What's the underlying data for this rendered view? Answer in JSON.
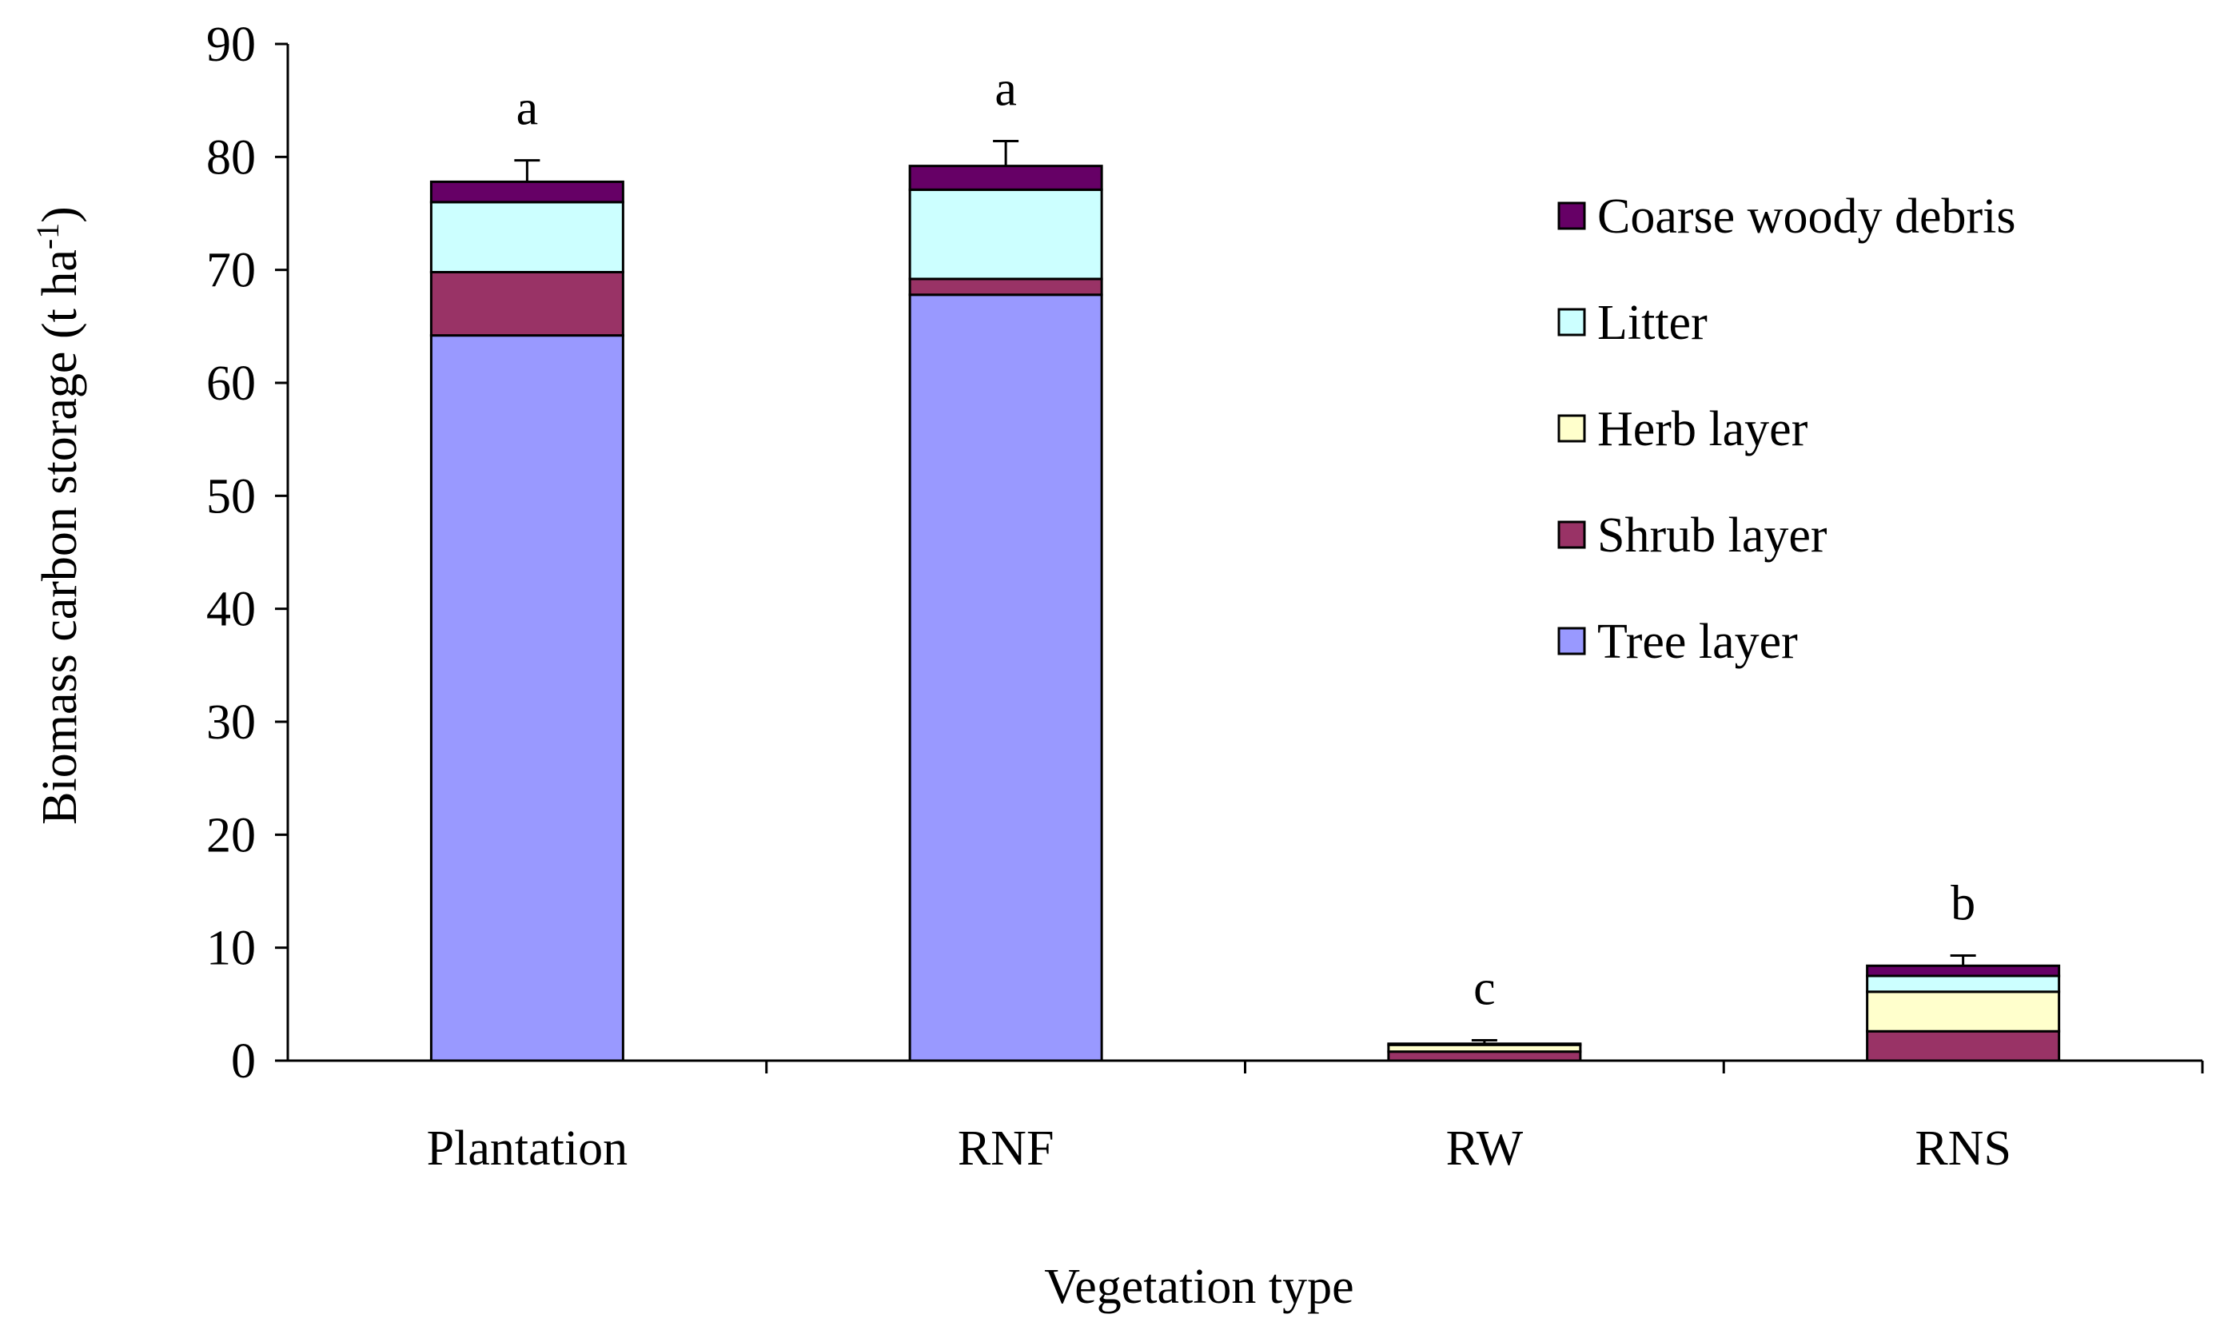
{
  "chart_data": {
    "type": "bar",
    "stacked": true,
    "title": "",
    "xlabel": "Vegetation type",
    "ylabel": "Biomass carbon storage (t ha",
    "ylabel_superscript": "-1",
    "ylabel_suffix": ")",
    "ylim": [
      0,
      90
    ],
    "yticks": [
      "0",
      "10",
      "20",
      "30",
      "40",
      "50",
      "60",
      "70",
      "80",
      "90"
    ],
    "categories": [
      "Plantation",
      "RNF",
      "RW",
      "RNS"
    ],
    "series": [
      {
        "name": "Tree layer",
        "color": "#9999ff",
        "values": [
          64.2,
          67.8,
          0,
          0
        ]
      },
      {
        "name": "Shrub layer",
        "color": "#993366",
        "values": [
          5.6,
          1.4,
          0.8,
          2.6
        ]
      },
      {
        "name": "Herb layer",
        "color": "#ffffcc",
        "values": [
          0,
          0,
          0.6,
          3.5
        ]
      },
      {
        "name": "Litter",
        "color": "#ccffff",
        "values": [
          6.2,
          7.9,
          0.1,
          1.4
        ]
      },
      {
        "name": "Coarse woody debris",
        "color": "#660066",
        "values": [
          1.8,
          2.1,
          0,
          0.9
        ]
      }
    ],
    "error_bars": [
      1.9,
      2.2,
      0.3,
      0.9
    ],
    "significance_letters": [
      "a",
      "a",
      "c",
      "b"
    ],
    "legend_order": [
      "Coarse woody debris",
      "Litter",
      "Herb layer",
      "Shrub layer",
      "Tree layer"
    ],
    "legend_position": "right",
    "grid": false
  }
}
